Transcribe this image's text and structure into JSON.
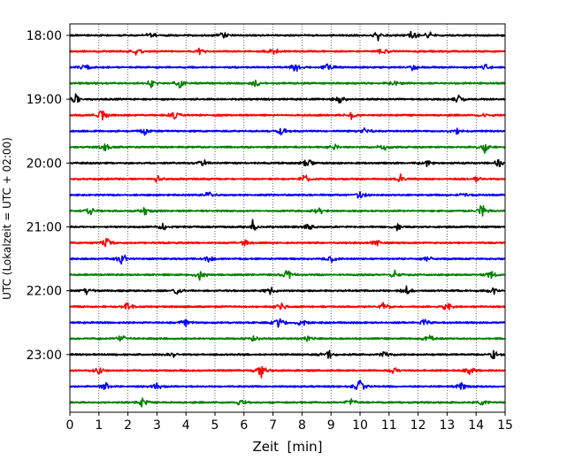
{
  "chart_data": {
    "type": "line",
    "subtype": "helicorder (seismogram drum plot)",
    "xlabel": "Zeit  [min]",
    "ylabel": "UTC (Lokalzeit = UTC + 02:00)",
    "xlim": [
      0,
      15
    ],
    "x_ticks": [
      0,
      1,
      2,
      3,
      4,
      5,
      6,
      7,
      8,
      9,
      10,
      11,
      12,
      13,
      14,
      15
    ],
    "x_tick_labels": [
      "0",
      "1",
      "2",
      "3",
      "4",
      "5",
      "6",
      "7",
      "8",
      "9",
      "10",
      "11",
      "12",
      "13",
      "14",
      "15"
    ],
    "grid": "vertical dotted lines at each minute",
    "trace_interval_min": 15,
    "row_colors": [
      "#000000",
      "#ff0000",
      "#0000ff",
      "#008000"
    ],
    "y_tick_labels": [
      "18:00",
      "19:00",
      "20:00",
      "21:00",
      "22:00",
      "23:00"
    ],
    "y_tick_rows": [
      0,
      4,
      8,
      12,
      16,
      20
    ],
    "rows": [
      {
        "start": "18:00",
        "events": [
          [
            5.3,
            1.1
          ],
          [
            10.6,
            1.7
          ],
          [
            11.8,
            1.3
          ],
          [
            12.4,
            1.2
          ],
          [
            2.8,
            1.0
          ]
        ]
      },
      {
        "start": "18:15",
        "events": [
          [
            7.0,
            1.6
          ],
          [
            2.3,
            1.0
          ],
          [
            10.8,
            1.1
          ],
          [
            4.5,
            1.0
          ]
        ]
      },
      {
        "start": "18:30",
        "events": [
          [
            7.8,
            1.6
          ],
          [
            0.5,
            1.0
          ],
          [
            11.8,
            1.2
          ],
          [
            8.9,
            1.3
          ],
          [
            14.3,
            1.0
          ]
        ]
      },
      {
        "start": "18:45",
        "events": [
          [
            2.8,
            1.2
          ],
          [
            3.8,
            1.3
          ],
          [
            11.2,
            1.0
          ],
          [
            6.4,
            1.0
          ]
        ]
      },
      {
        "start": "19:00",
        "events": [
          [
            0.2,
            1.3
          ],
          [
            9.3,
            1.1
          ],
          [
            13.4,
            1.0
          ]
        ]
      },
      {
        "start": "19:15",
        "events": [
          [
            1.1,
            2.4
          ],
          [
            3.6,
            1.2
          ],
          [
            9.7,
            1.3
          ],
          [
            14.3,
            1.0
          ]
        ]
      },
      {
        "start": "19:30",
        "events": [
          [
            2.6,
            1.3
          ],
          [
            7.3,
            1.1
          ],
          [
            10.2,
            1.0
          ],
          [
            13.3,
            1.1
          ]
        ]
      },
      {
        "start": "19:45",
        "events": [
          [
            1.2,
            1.1
          ],
          [
            9.1,
            1.2
          ],
          [
            10.8,
            1.2
          ],
          [
            14.3,
            1.8
          ]
        ]
      },
      {
        "start": "20:00",
        "events": [
          [
            8.2,
            1.3
          ],
          [
            4.6,
            1.0
          ],
          [
            12.3,
            1.0
          ],
          [
            14.8,
            1.2
          ]
        ]
      },
      {
        "start": "20:15",
        "events": [
          [
            3.0,
            1.0
          ],
          [
            8.1,
            1.2
          ],
          [
            11.4,
            1.1
          ],
          [
            14.0,
            1.0
          ]
        ]
      },
      {
        "start": "20:30",
        "events": [
          [
            4.8,
            1.1
          ],
          [
            10.0,
            1.1
          ],
          [
            13.6,
            1.0
          ]
        ]
      },
      {
        "start": "20:45",
        "events": [
          [
            0.7,
            1.0
          ],
          [
            2.6,
            1.1
          ],
          [
            8.6,
            1.0
          ],
          [
            14.2,
            1.8
          ]
        ]
      },
      {
        "start": "21:00",
        "events": [
          [
            3.2,
            1.1
          ],
          [
            6.3,
            1.7
          ],
          [
            8.2,
            1.1
          ],
          [
            11.3,
            1.0
          ]
        ]
      },
      {
        "start": "21:15",
        "events": [
          [
            1.3,
            1.5
          ],
          [
            6.0,
            1.0
          ],
          [
            10.6,
            1.0
          ]
        ]
      },
      {
        "start": "21:30",
        "events": [
          [
            1.8,
            1.8
          ],
          [
            4.8,
            1.1
          ],
          [
            9.0,
            1.1
          ],
          [
            12.3,
            1.0
          ]
        ]
      },
      {
        "start": "21:45",
        "events": [
          [
            4.5,
            1.8
          ],
          [
            7.5,
            1.5
          ],
          [
            11.2,
            1.0
          ],
          [
            14.5,
            1.1
          ]
        ]
      },
      {
        "start": "22:00",
        "events": [
          [
            0.6,
            1.0
          ],
          [
            3.7,
            1.1
          ],
          [
            6.9,
            1.1
          ],
          [
            11.6,
            1.1
          ],
          [
            14.6,
            1.0
          ]
        ]
      },
      {
        "start": "22:15",
        "events": [
          [
            2.0,
            1.2
          ],
          [
            7.3,
            1.1
          ],
          [
            10.8,
            1.1
          ],
          [
            13.0,
            1.2
          ]
        ]
      },
      {
        "start": "22:30",
        "events": [
          [
            4.0,
            1.1
          ],
          [
            7.2,
            1.7
          ],
          [
            8.0,
            1.1
          ],
          [
            12.2,
            1.0
          ]
        ]
      },
      {
        "start": "22:45",
        "events": [
          [
            1.8,
            1.2
          ],
          [
            6.3,
            1.1
          ],
          [
            8.2,
            1.1
          ],
          [
            12.4,
            1.0
          ]
        ]
      },
      {
        "start": "23:00",
        "events": [
          [
            3.5,
            1.0
          ],
          [
            8.9,
            1.6
          ],
          [
            10.9,
            1.3
          ],
          [
            14.6,
            1.1
          ]
        ]
      },
      {
        "start": "23:15",
        "events": [
          [
            1.0,
            1.0
          ],
          [
            6.6,
            2.0
          ],
          [
            11.2,
            1.0
          ],
          [
            13.8,
            1.0
          ]
        ]
      },
      {
        "start": "23:30",
        "events": [
          [
            1.2,
            1.3
          ],
          [
            3.0,
            1.0
          ],
          [
            10.0,
            1.8
          ],
          [
            13.5,
            1.0
          ]
        ]
      },
      {
        "start": "23:45",
        "events": [
          [
            2.5,
            1.3
          ],
          [
            5.9,
            1.0
          ],
          [
            9.7,
            1.0
          ],
          [
            14.2,
            1.0
          ]
        ]
      }
    ]
  }
}
